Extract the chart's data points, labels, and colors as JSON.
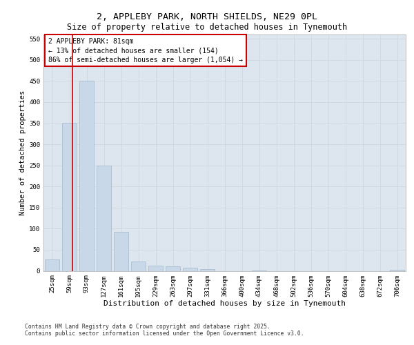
{
  "title1": "2, APPLEBY PARK, NORTH SHIELDS, NE29 0PL",
  "title2": "Size of property relative to detached houses in Tynemouth",
  "xlabel": "Distribution of detached houses by size in Tynemouth",
  "ylabel": "Number of detached properties",
  "bar_labels": [
    "25sqm",
    "59sqm",
    "93sqm",
    "127sqm",
    "161sqm",
    "195sqm",
    "229sqm",
    "263sqm",
    "297sqm",
    "331sqm",
    "366sqm",
    "400sqm",
    "434sqm",
    "468sqm",
    "502sqm",
    "536sqm",
    "570sqm",
    "604sqm",
    "638sqm",
    "672sqm",
    "706sqm"
  ],
  "bar_values": [
    27,
    350,
    450,
    250,
    93,
    22,
    13,
    10,
    7,
    4,
    0,
    0,
    1,
    0,
    0,
    0,
    0,
    0,
    0,
    0,
    3
  ],
  "bar_color": "#c8d8e8",
  "bar_edge_color": "#a0b8cc",
  "grid_color": "#d0d8e0",
  "background_color": "#dde6ef",
  "vline_x": 1.18,
  "vline_color": "#cc0000",
  "annotation_text": "2 APPLEBY PARK: 81sqm\n← 13% of detached houses are smaller (154)\n86% of semi-detached houses are larger (1,054) →",
  "annotation_box_color": "#cc0000",
  "ylim": [
    0,
    560
  ],
  "yticks": [
    0,
    50,
    100,
    150,
    200,
    250,
    300,
    350,
    400,
    450,
    500,
    550
  ],
  "footer1": "Contains HM Land Registry data © Crown copyright and database right 2025.",
  "footer2": "Contains public sector information licensed under the Open Government Licence v3.0.",
  "title1_fontsize": 9.5,
  "title2_fontsize": 8.5,
  "ylabel_fontsize": 7.5,
  "xlabel_fontsize": 8,
  "tick_fontsize": 6.5,
  "annotation_fontsize": 7,
  "footer_fontsize": 5.8
}
